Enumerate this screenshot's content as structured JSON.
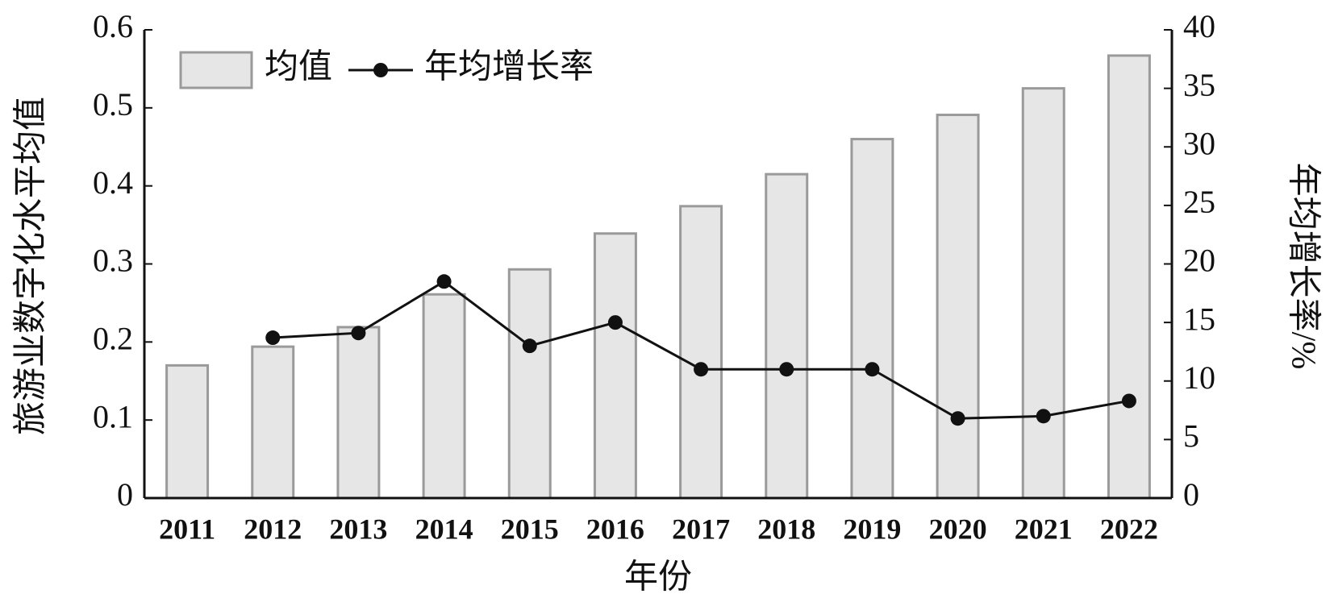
{
  "chart_data": {
    "type": "bar",
    "x_label": "年份",
    "y_label": "旅游业数字化水平均值",
    "y2_label": "年均增长率/%",
    "categories": [
      "2011",
      "2012",
      "2013",
      "2014",
      "2015",
      "2016",
      "2017",
      "2018",
      "2019",
      "2020",
      "2021",
      "2022"
    ],
    "series": [
      {
        "name": "均值",
        "type": "bar",
        "color": "#e6e6e6",
        "edge_color": "#9a9a9a",
        "values": [
          0.17,
          0.194,
          0.219,
          0.261,
          0.293,
          0.339,
          0.374,
          0.415,
          0.46,
          0.491,
          0.525,
          0.567
        ]
      },
      {
        "name": "年均增长率",
        "type": "line",
        "axis": "y2",
        "color": "#111111",
        "values": [
          null,
          13.7,
          14.1,
          18.5,
          13.0,
          15.0,
          11.0,
          11.0,
          11.0,
          6.8,
          7.0,
          8.3
        ]
      }
    ],
    "ylim": [
      0,
      0.6
    ],
    "yticks": [
      0,
      0.1,
      0.2,
      0.3,
      0.4,
      0.5,
      0.6
    ],
    "y2lim": [
      0,
      40
    ],
    "y2ticks": [
      0,
      5,
      10,
      15,
      20,
      25,
      30,
      35,
      40
    ],
    "legend": "upper-left"
  }
}
